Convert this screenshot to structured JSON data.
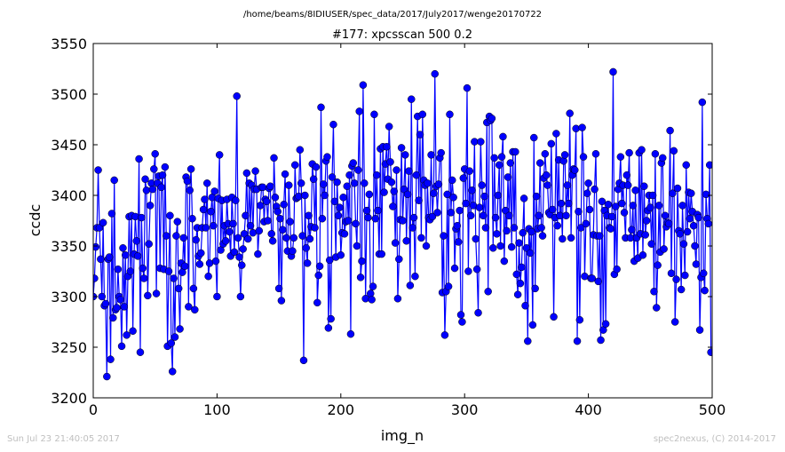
{
  "header": {
    "path": "/home/beams/8IDIUSER/spec_data/2017/July2017/wenge20170722"
  },
  "footer": {
    "timestamp": "Sun Jul 23 21:40:05 2017",
    "credit": "spec2nexus, (C) 2014-2017"
  },
  "colors": {
    "series": "#0000ff",
    "axes": "#000000",
    "footer_text": "#bfbfbf",
    "background": "#ffffff"
  },
  "chart_data": {
    "type": "line",
    "title": "#177: xpcsscan 500 0.2",
    "xlabel": "img_n",
    "ylabel": "ccdc",
    "xlim": [
      0,
      500
    ],
    "ylim": [
      3200,
      3550
    ],
    "xticks": [
      0,
      100,
      200,
      300,
      400,
      500
    ],
    "yticks": [
      3200,
      3250,
      3300,
      3350,
      3400,
      3450,
      3500,
      3550
    ],
    "markers": "circle",
    "grid": false,
    "series": [
      {
        "x_start": 0,
        "x_step": 1,
        "values": [
          3300,
          3318,
          3349,
          3368,
          3425,
          3368,
          3337,
          3300,
          3373,
          3291,
          3293,
          3221,
          3337,
          3339,
          3238,
          3382,
          3279,
          3415,
          3287,
          3289,
          3327,
          3300,
          3297,
          3251,
          3348,
          3290,
          3341,
          3262,
          3320,
          3379,
          3325,
          3380,
          3266,
          3342,
          3379,
          3355,
          3340,
          3436,
          3245,
          3378,
          3328,
          3318,
          3416,
          3405,
          3301,
          3352,
          3390,
          3412,
          3406,
          3426,
          3441,
          3303,
          3412,
          3419,
          3328,
          3408,
          3420,
          3327,
          3428,
          3360,
          3251,
          3325,
          3380,
          3254,
          3226,
          3318,
          3260,
          3360,
          3374,
          3308,
          3268,
          3333,
          3324,
          3358,
          3330,
          3418,
          3414,
          3290,
          3405,
          3426,
          3377,
          3308,
          3287,
          3356,
          3368,
          3340,
          3332,
          3343,
          3368,
          3386,
          3396,
          3368,
          3412,
          3320,
          3333,
          3384,
          3398,
          3370,
          3404,
          3335,
          3300,
          3397,
          3440,
          3346,
          3395,
          3352,
          3370,
          3355,
          3396,
          3372,
          3364,
          3340,
          3398,
          3372,
          3344,
          3395,
          3498,
          3358,
          3339,
          3300,
          3331,
          3347,
          3362,
          3380,
          3422,
          3357,
          3412,
          3370,
          3410,
          3363,
          3406,
          3424,
          3406,
          3342,
          3365,
          3390,
          3408,
          3408,
          3374,
          3396,
          3394,
          3375,
          3407,
          3409,
          3362,
          3355,
          3437,
          3398,
          3389,
          3384,
          3308,
          3377,
          3296,
          3366,
          3391,
          3421,
          3358,
          3345,
          3410,
          3374,
          3340,
          3345,
          3358,
          3430,
          3397,
          3398,
          3399,
          3445,
          3412,
          3360,
          3237,
          3400,
          3348,
          3333,
          3380,
          3357,
          3369,
          3431,
          3416,
          3368,
          3428,
          3294,
          3321,
          3330,
          3487,
          3377,
          3411,
          3400,
          3434,
          3438,
          3269,
          3336,
          3278,
          3418,
          3470,
          3394,
          3339,
          3413,
          3380,
          3388,
          3341,
          3363,
          3398,
          3362,
          3374,
          3409,
          3375,
          3420,
          3263,
          3429,
          3432,
          3412,
          3372,
          3350,
          3425,
          3483,
          3319,
          3335,
          3509,
          3412,
          3298,
          3385,
          3378,
          3401,
          3303,
          3297,
          3310,
          3480,
          3377,
          3420,
          3385,
          3342,
          3446,
          3342,
          3448,
          3403,
          3431,
          3448,
          3416,
          3468,
          3433,
          3413,
          3389,
          3404,
          3353,
          3425,
          3298,
          3337,
          3376,
          3447,
          3375,
          3406,
          3440,
          3355,
          3401,
          3424,
          3311,
          3495,
          3368,
          3378,
          3320,
          3420,
          3478,
          3395,
          3460,
          3358,
          3480,
          3415,
          3410,
          3350,
          3412,
          3378,
          3376,
          3440,
          3379,
          3402,
          3520,
          3409,
          3383,
          3411,
          3437,
          3442,
          3304,
          3360,
          3262,
          3305,
          3401,
          3310,
          3480,
          3383,
          3415,
          3398,
          3328,
          3367,
          3370,
          3354,
          3385,
          3282,
          3275,
          3417,
          3426,
          3392,
          3506,
          3325,
          3424,
          3380,
          3405,
          3390,
          3453,
          3357,
          3327,
          3284,
          3388,
          3453,
          3410,
          3380,
          3399,
          3368,
          3472,
          3305,
          3478,
          3474,
          3476,
          3348,
          3437,
          3378,
          3362,
          3400,
          3430,
          3350,
          3438,
          3458,
          3335,
          3385,
          3365,
          3418,
          3380,
          3432,
          3349,
          3443,
          3368,
          3443,
          3322,
          3302,
          3353,
          3313,
          3329,
          3363,
          3397,
          3291,
          3348,
          3256,
          3367,
          3343,
          3364,
          3272,
          3457,
          3308,
          3399,
          3367,
          3380,
          3432,
          3368,
          3360,
          3417,
          3441,
          3420,
          3410,
          3383,
          3381,
          3451,
          3386,
          3280,
          3378,
          3461,
          3370,
          3435,
          3380,
          3392,
          3357,
          3434,
          3440,
          3380,
          3410,
          3392,
          3481,
          3358,
          3420,
          3426,
          3425,
          3466,
          3256,
          3384,
          3277,
          3368,
          3467,
          3438,
          3320,
          3372,
          3402,
          3412,
          3386,
          3318,
          3318,
          3361,
          3406,
          3441,
          3360,
          3315,
          3360,
          3257,
          3394,
          3267,
          3385,
          3273,
          3380,
          3391,
          3368,
          3367,
          3379,
          3522,
          3322,
          3389,
          3327,
          3406,
          3412,
          3438,
          3392,
          3410,
          3383,
          3358,
          3420,
          3410,
          3442,
          3358,
          3366,
          3390,
          3335,
          3405,
          3358,
          3338,
          3442,
          3362,
          3445,
          3341,
          3409,
          3361,
          3375,
          3385,
          3400,
          3388,
          3352,
          3400,
          3305,
          3441,
          3289,
          3331,
          3390,
          3344,
          3432,
          3437,
          3347,
          3380,
          3369,
          3373,
          3372,
          3464,
          3323,
          3402,
          3444,
          3275,
          3317,
          3407,
          3365,
          3362,
          3307,
          3390,
          3352,
          3321,
          3430,
          3364,
          3403,
          3377,
          3402,
          3384,
          3370,
          3350,
          3332,
          3381,
          3378,
          3267,
          3319,
          3492,
          3323,
          3306,
          3401,
          3377,
          3372,
          3430,
          3245
        ]
      }
    ]
  }
}
